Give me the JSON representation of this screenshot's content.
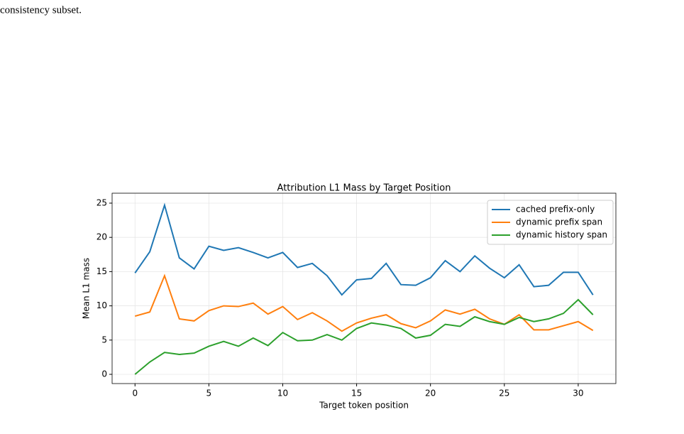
{
  "text_top": "consistency subset.",
  "chart_data": {
    "type": "line",
    "title": "Attribution L1 Mass by Target Position",
    "xlabel": "Target token position",
    "ylabel": "Mean L1 mass",
    "x": [
      0,
      1,
      2,
      3,
      4,
      5,
      6,
      7,
      8,
      9,
      10,
      11,
      12,
      13,
      14,
      15,
      16,
      17,
      18,
      19,
      20,
      21,
      22,
      23,
      24,
      25,
      26,
      27,
      28,
      29,
      30,
      31
    ],
    "series": [
      {
        "name": "cached prefix-only",
        "color": "#1f77b4",
        "values": [
          14.8,
          17.9,
          24.7,
          17.0,
          15.4,
          18.7,
          18.1,
          18.5,
          17.8,
          17.0,
          17.8,
          15.6,
          16.2,
          14.4,
          11.6,
          13.8,
          14.0,
          16.2,
          13.1,
          13.0,
          14.1,
          16.6,
          15.0,
          17.3,
          15.5,
          14.1,
          16.0,
          12.8,
          13.0,
          14.9,
          14.9,
          11.6
        ]
      },
      {
        "name": "dynamic prefix span",
        "color": "#ff7f0e",
        "values": [
          8.5,
          9.1,
          14.4,
          8.1,
          7.8,
          9.3,
          10.0,
          9.9,
          10.4,
          8.8,
          9.9,
          8.0,
          9.0,
          7.8,
          6.3,
          7.5,
          8.2,
          8.7,
          7.4,
          6.8,
          7.8,
          9.4,
          8.8,
          9.5,
          8.1,
          7.3,
          8.7,
          6.5,
          6.5,
          7.1,
          7.7,
          6.4
        ]
      },
      {
        "name": "dynamic history span",
        "color": "#2ca02c",
        "values": [
          0,
          1.8,
          3.2,
          2.9,
          3.1,
          4.1,
          4.8,
          4.1,
          5.3,
          4.2,
          6.1,
          4.9,
          5.0,
          5.8,
          5.0,
          6.7,
          7.5,
          7.2,
          6.7,
          5.3,
          5.7,
          7.3,
          7.0,
          8.4,
          7.7,
          7.3,
          8.3,
          7.7,
          8.1,
          8.9,
          10.9,
          8.7
        ]
      }
    ],
    "xlim": [
      -1.55,
      32.55
    ],
    "xticks": [
      0,
      5,
      10,
      15,
      20,
      25,
      30
    ],
    "ylim": [
      -1.35,
      26.45
    ],
    "yticks": [
      0,
      5,
      10,
      15,
      20,
      25
    ],
    "grid": true,
    "legend": "upper-right"
  }
}
